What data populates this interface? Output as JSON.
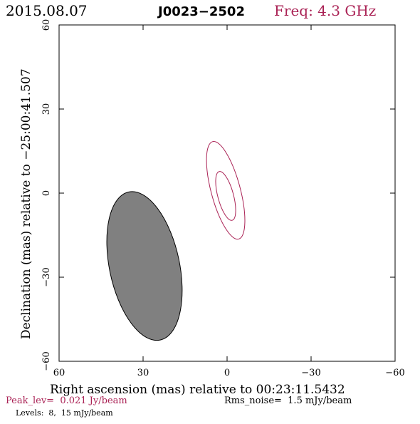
{
  "header": {
    "date": "2015.08.07",
    "source": "J0023−2502",
    "freq": "Freq: 4.3 GHz"
  },
  "chart_data": {
    "type": "contour",
    "xlabel": "Right ascension (mas) relative to 00:23:11.5432",
    "ylabel": "Declination (mas) relative to −25:00:41.507",
    "xlim": [
      60,
      -60
    ],
    "ylim": [
      -60,
      60
    ],
    "x_ticks": [
      60,
      30,
      0,
      -30,
      -60
    ],
    "y_ticks": [
      -60,
      -30,
      0,
      30,
      60
    ],
    "x_tick_labels": [
      "60",
      "30",
      "0",
      "−30",
      "−60"
    ],
    "y_tick_labels": [
      "−60",
      "−30",
      "0",
      "30",
      "60"
    ],
    "contour_levels_mJy": [
      8,
      15
    ],
    "contours": [
      {
        "level": 8,
        "center": [
          0.5,
          1
        ],
        "semi_major": 18,
        "semi_minor": 5.2,
        "pa_deg": 15
      },
      {
        "level": 15,
        "center": [
          0.5,
          -1
        ],
        "semi_major": 9,
        "semi_minor": 2.8,
        "pa_deg": 15
      }
    ],
    "beam": {
      "center": [
        29.5,
        -26
      ],
      "semi_major": 27,
      "semi_minor": 12.5,
      "pa_deg": 12
    },
    "contour_color": "#aa2255",
    "beam_color": "#808080"
  },
  "footer": {
    "peak": "Peak_lev=  0.021 Jy/beam",
    "rms": "Rms_noise=  1.5 mJy/beam",
    "levels": "Levels:  8,  15 mJy/beam"
  }
}
